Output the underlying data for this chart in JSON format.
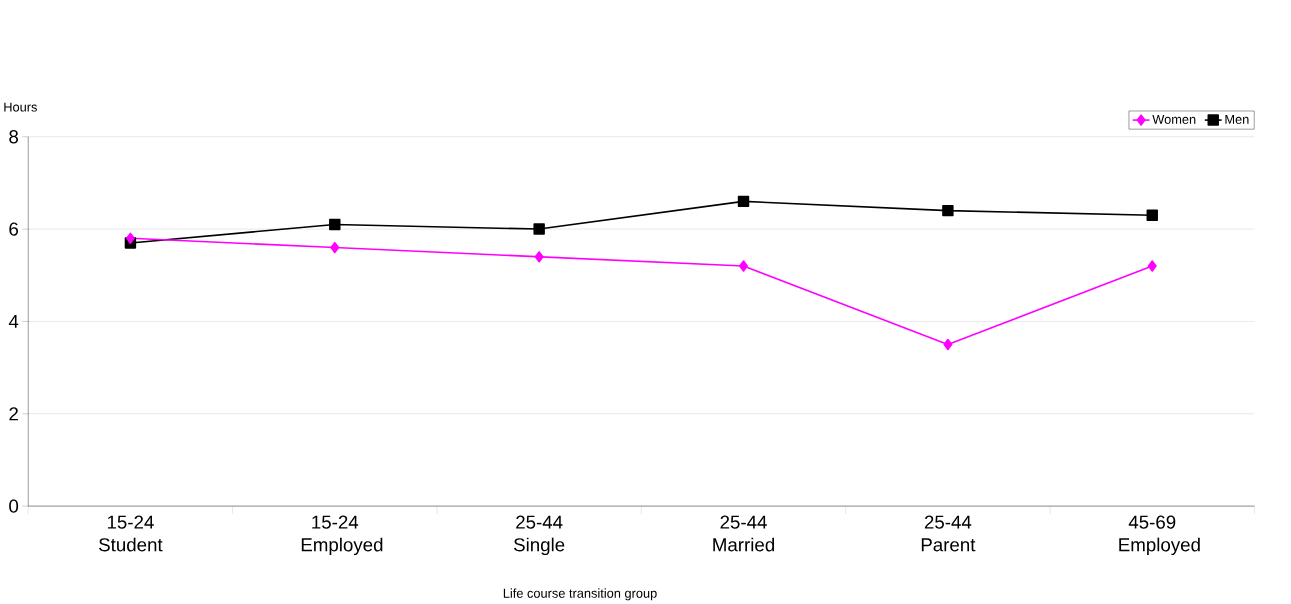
{
  "chart_data": {
    "type": "line",
    "xlabel": "Life course transition group",
    "ylabel": "Hours",
    "categories": [
      "15-24 Student",
      "15-24 Employed",
      "25-44 Single",
      "25-44 Married",
      "25-44 Parent",
      "45-69 Employed"
    ],
    "series": [
      {
        "name": "Women",
        "color": "#ff00ff",
        "marker": "diamond",
        "values": [
          5.8,
          5.6,
          5.4,
          5.2,
          3.5,
          5.2
        ]
      },
      {
        "name": "Men",
        "color": "#000000",
        "marker": "square",
        "values": [
          5.7,
          6.1,
          6.0,
          6.6,
          6.4,
          6.3
        ]
      }
    ],
    "ylim": [
      0,
      8
    ],
    "yticks": [
      0,
      2,
      4,
      6,
      8
    ],
    "grid": "y",
    "legend": "top right",
    "line_style": "solid"
  }
}
